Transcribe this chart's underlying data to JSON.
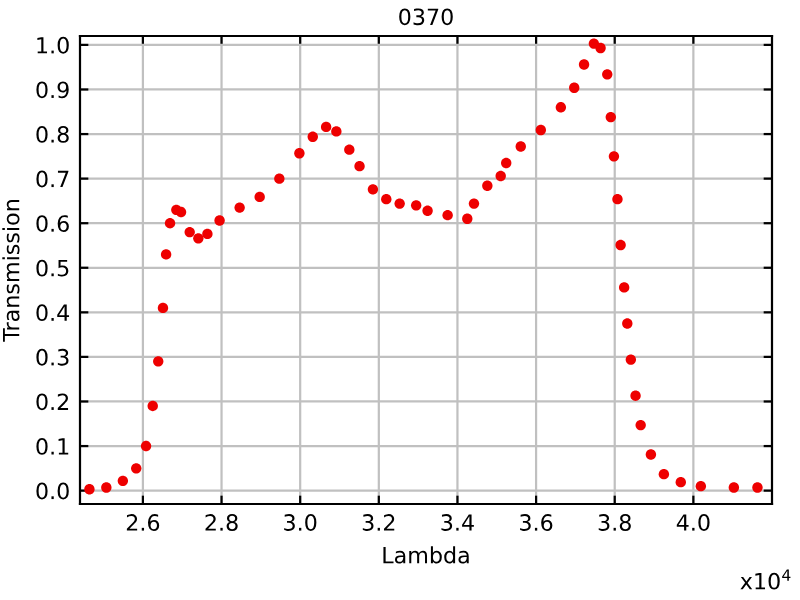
{
  "chart_data": {
    "type": "scatter",
    "title": "0370",
    "xlabel": "Lambda",
    "ylabel": "Transmission",
    "annotations": [
      "x10$^{4}$"
    ],
    "x": [
      2.464,
      2.507,
      2.549,
      2.583,
      2.608,
      2.625,
      2.639,
      2.651,
      2.659,
      2.669,
      2.685,
      2.697,
      2.719,
      2.741,
      2.764,
      2.795,
      2.846,
      2.897,
      2.947,
      2.998,
      3.032,
      3.066,
      3.092,
      3.125,
      3.151,
      3.185,
      3.219,
      3.253,
      3.295,
      3.324,
      3.375,
      3.425,
      3.442,
      3.476,
      3.51,
      3.524,
      3.561,
      3.612,
      3.663,
      3.697,
      3.722,
      3.747,
      3.764,
      3.781,
      3.79,
      3.798,
      3.807,
      3.815,
      3.824,
      3.832,
      3.841,
      3.853,
      3.866,
      3.892,
      3.925,
      3.968,
      4.019,
      4.103,
      4.163
    ],
    "series": [
      {
        "color": "#ee0000",
        "values": [
          0.003,
          0.007,
          0.022,
          0.05,
          0.1,
          0.19,
          0.29,
          0.41,
          0.53,
          0.6,
          0.63,
          0.625,
          0.58,
          0.566,
          0.576,
          0.606,
          0.635,
          0.659,
          0.7,
          0.757,
          0.794,
          0.816,
          0.806,
          0.765,
          0.728,
          0.676,
          0.654,
          0.644,
          0.64,
          0.628,
          0.618,
          0.61,
          0.644,
          0.684,
          0.706,
          0.735,
          0.772,
          0.809,
          0.86,
          0.904,
          0.956,
          1.003,
          0.993,
          0.934,
          0.838,
          0.75,
          0.654,
          0.551,
          0.456,
          0.375,
          0.294,
          0.213,
          0.147,
          0.081,
          0.037,
          0.019,
          0.01,
          0.007,
          0.007
        ]
      }
    ],
    "marker": "circle",
    "grid": true,
    "xlim": [
      2.44,
      4.2
    ],
    "ylim": [
      -0.03,
      1.02
    ],
    "xticks": [
      2.6,
      2.8,
      {
        "value": 3,
        "label": "3.0"
      },
      3.2,
      3.4,
      3.6,
      3.8,
      {
        "value": 4,
        "label": "4.0"
      }
    ],
    "yticks": [
      {
        "value": 0,
        "label": "0.0"
      },
      0.1,
      0.2,
      0.3,
      0.4,
      0.5,
      0.6,
      0.7,
      0.8,
      0.9,
      {
        "value": 1,
        "label": "1.0"
      }
    ]
  }
}
